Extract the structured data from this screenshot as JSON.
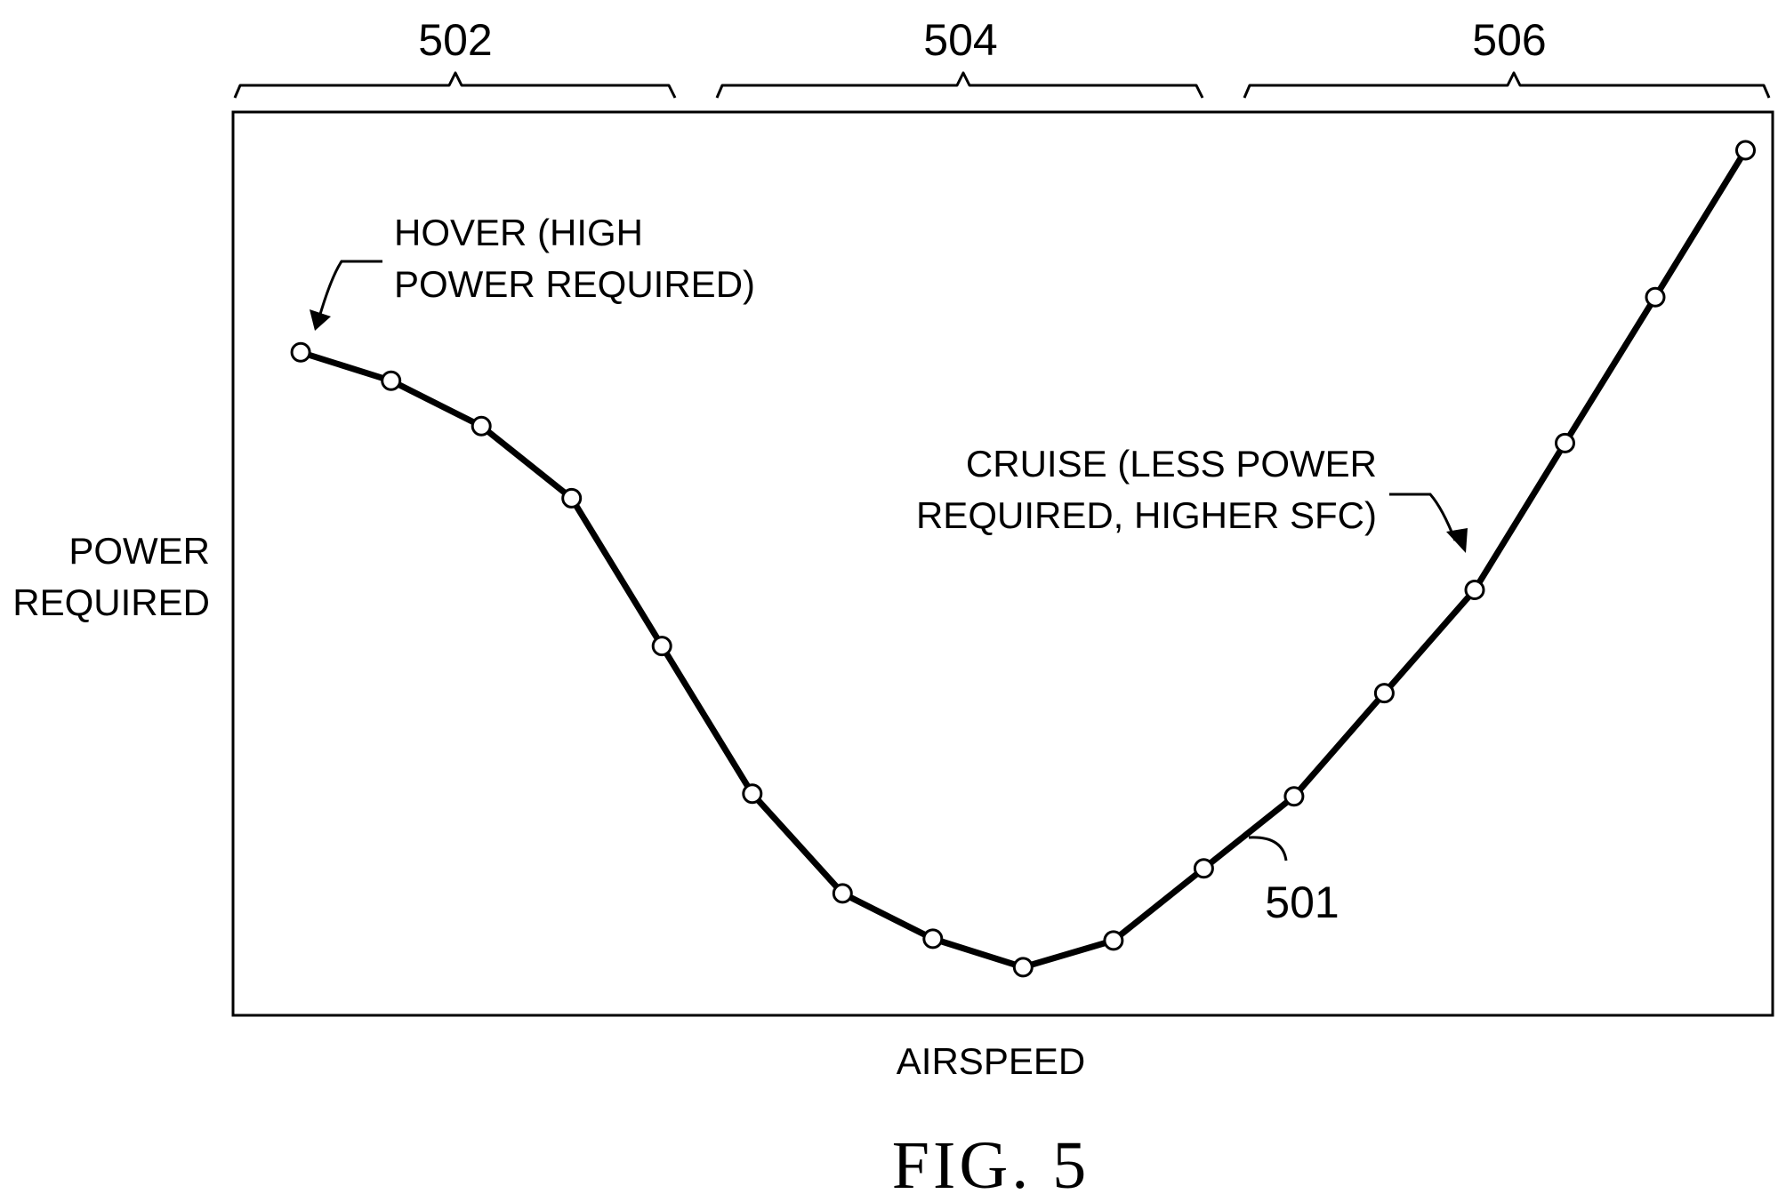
{
  "figure": {
    "caption": "FIG. 5",
    "curve_ref": "501",
    "brackets": [
      {
        "label": "502"
      },
      {
        "label": "504"
      },
      {
        "label": "506"
      }
    ],
    "annotations": {
      "hover": [
        "HOVER (HIGH",
        "POWER REQUIRED)"
      ],
      "cruise": [
        "CRUISE (LESS POWER",
        "REQUIRED, HIGHER SFC)"
      ]
    }
  },
  "chart_data": {
    "type": "line",
    "xlabel": "AIRSPEED",
    "ylabel": [
      "POWER",
      "REQUIRED"
    ],
    "grid": false,
    "series": [
      {
        "name": "501",
        "marker": "circle",
        "color": "#000000",
        "x": [
          1,
          2,
          3,
          4,
          5,
          6,
          7,
          8,
          9,
          10,
          11,
          12,
          13,
          14,
          15,
          16,
          17
        ],
        "y": [
          73,
          69.8,
          64.7,
          56.6,
          40,
          23.4,
          12.2,
          7.1,
          3.9,
          6.9,
          15,
          23.1,
          34.7,
          46.3,
          62.8,
          79.2,
          95.7
        ]
      }
    ],
    "xlim": [
      0.25,
      17.3
    ],
    "ylim": [
      -1.5,
      100
    ]
  }
}
